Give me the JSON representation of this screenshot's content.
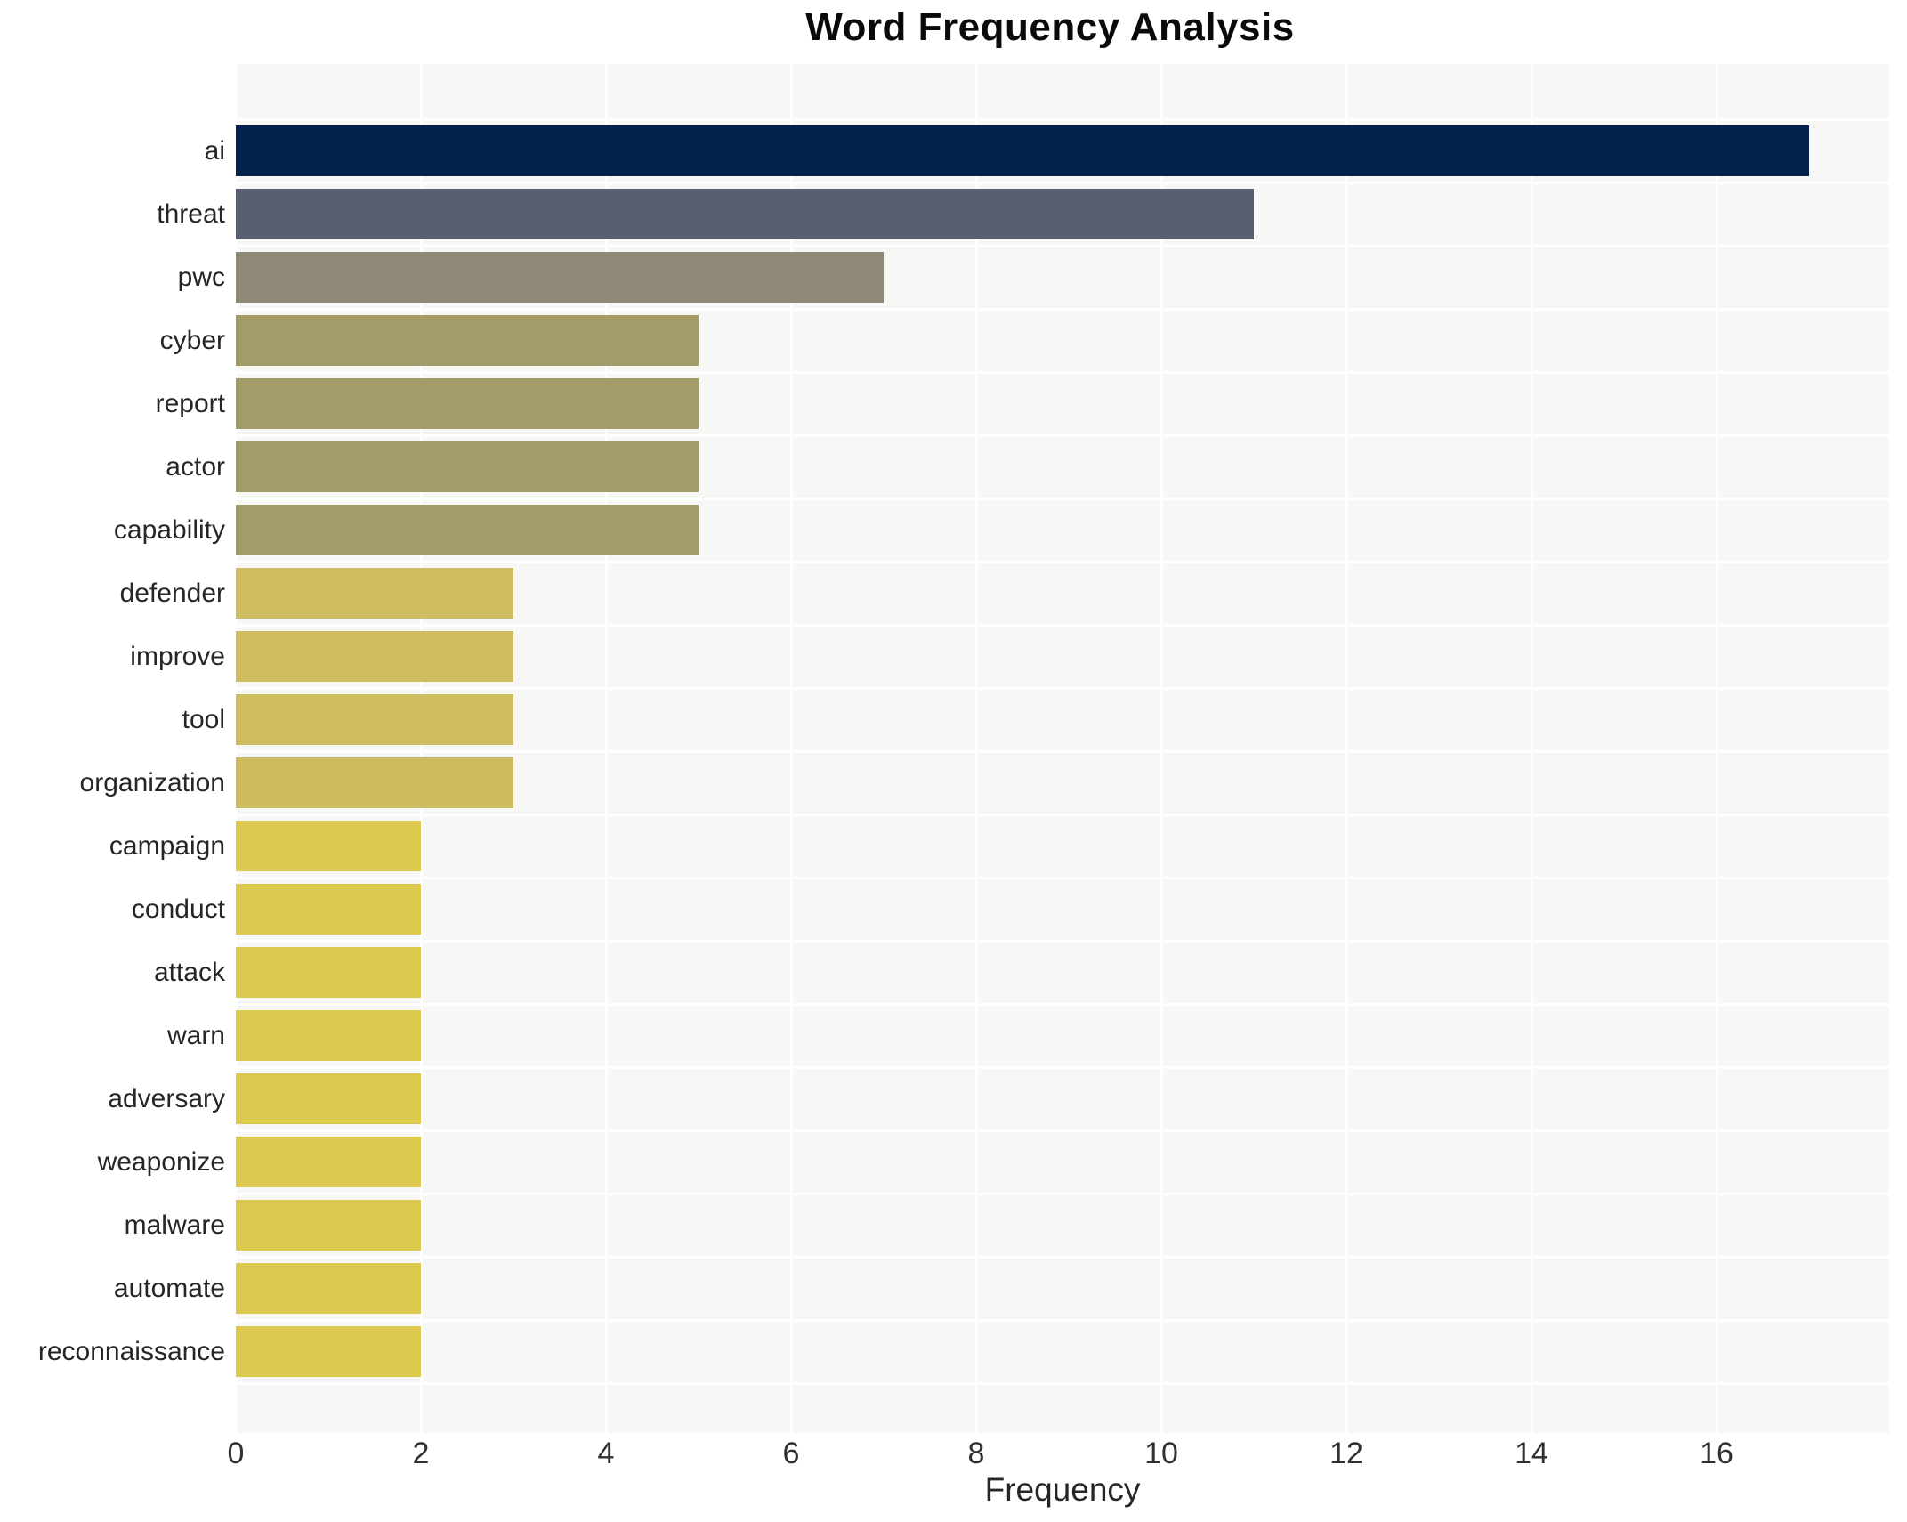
{
  "title": "Word Frequency Analysis",
  "chart_data": {
    "type": "bar",
    "orientation": "horizontal",
    "title": "Word Frequency Analysis",
    "xlabel": "Frequency",
    "ylabel": "",
    "xlim": [
      0,
      17.87
    ],
    "xticks": [
      0,
      2,
      4,
      6,
      8,
      10,
      12,
      14,
      16
    ],
    "grid": true,
    "legend": "none",
    "plot_background": "#f7f7f6",
    "grid_color": "#ffffff",
    "categories": [
      "ai",
      "threat",
      "pwc",
      "cyber",
      "report",
      "actor",
      "capability",
      "defender",
      "improve",
      "tool",
      "organization",
      "campaign",
      "conduct",
      "attack",
      "warn",
      "adversary",
      "weaponize",
      "malware",
      "automate",
      "reconnaissance"
    ],
    "values": [
      17,
      11,
      7,
      5,
      5,
      5,
      5,
      3,
      3,
      3,
      3,
      2,
      2,
      2,
      2,
      2,
      2,
      2,
      2,
      2
    ],
    "bar_colors": [
      "#02234d",
      "#586070",
      "#8f8977",
      "#a49c68",
      "#a49c68",
      "#a49c68",
      "#a49c68",
      "#cfbd62",
      "#cfbd62",
      "#cfbd62",
      "#cdbb60",
      "#ddc850",
      "#ddc850",
      "#ddc850",
      "#ddc850",
      "#ddc850",
      "#ddc850",
      "#ddc850",
      "#ddc850",
      "#ddc850"
    ]
  }
}
